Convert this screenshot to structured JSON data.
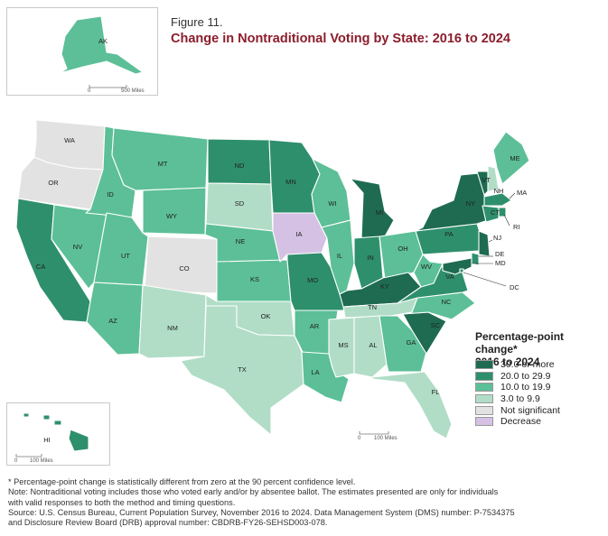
{
  "figure_label": "Figure 11.",
  "title": "Change in Nontraditional Voting by State: 2016 to 2024",
  "legend": {
    "title_line1": "Percentage-point change*",
    "title_line2": "2016 to 2024",
    "items": [
      {
        "label": "30.0 or more",
        "color": "#1e6b51"
      },
      {
        "label": "20.0 to 29.9",
        "color": "#2e8f6c"
      },
      {
        "label": "10.0 to 19.9",
        "color": "#5cbf97"
      },
      {
        "label": "3.0 to 9.9",
        "color": "#b1ddc7"
      },
      {
        "label": "Not significant",
        "color": "#e2e2e2"
      },
      {
        "label": "Decrease",
        "color": "#d4c1e3"
      }
    ]
  },
  "scales": {
    "ak": "500 Miles",
    "hi": "100 Miles",
    "main": "100 Miles",
    "zero": "0"
  },
  "states": {
    "AK": "10.0 to 19.9",
    "HI": "20.0 to 29.9",
    "WA": "Not significant",
    "OR": "Not significant",
    "CA": "20.0 to 29.9",
    "NV": "10.0 to 19.9",
    "ID": "10.0 to 19.9",
    "MT": "10.0 to 19.9",
    "WY": "10.0 to 19.9",
    "UT": "10.0 to 19.9",
    "AZ": "10.0 to 19.9",
    "CO": "Not significant",
    "NM": "3.0 to 9.9",
    "ND": "20.0 to 29.9",
    "SD": "3.0 to 9.9",
    "NE": "10.0 to 19.9",
    "KS": "10.0 to 19.9",
    "OK": "3.0 to 9.9",
    "TX": "3.0 to 9.9",
    "MN": "20.0 to 29.9",
    "IA": "Decrease",
    "MO": "20.0 to 29.9",
    "AR": "10.0 to 19.9",
    "LA": "10.0 to 19.9",
    "WI": "10.0 to 19.9",
    "IL": "10.0 to 19.9",
    "MI": "30.0 or more",
    "IN": "20.0 to 29.9",
    "OH": "10.0 to 19.9",
    "KY": "30.0 or more",
    "TN": "3.0 to 9.9",
    "MS": "3.0 to 9.9",
    "AL": "3.0 to 9.9",
    "GA": "10.0 to 19.9",
    "FL": "3.0 to 9.9",
    "SC": "30.0 or more",
    "NC": "10.0 to 19.9",
    "VA": "20.0 to 29.9",
    "WV": "10.0 to 19.9",
    "PA": "20.0 to 29.9",
    "NY": "30.0 or more",
    "VT": "30.0 or more",
    "NH": "3.0 to 9.9",
    "ME": "10.0 to 19.9",
    "MA": "20.0 to 29.9",
    "RI": "20.0 to 29.9",
    "CT": "20.0 to 29.9",
    "NJ": "30.0 or more",
    "DE": "20.0 to 29.9",
    "MD": "30.0 or more",
    "DC": "20.0 to 29.9"
  },
  "notes": [
    "* Percentage-point change is statistically different from zero at the 90 percent confidence level.",
    "Note: Nontraditional voting includes those who voted early and/or by absentee ballot. The estimates presented are only for individuals",
    "with valid responses to both the method and timing questions.",
    "Source: U.S. Census Bureau, Current Population Survey, November 2016 to 2024. Data Management System (DMS) number: P-7534375",
    "and Disclosure Review Board (DRB) approval number: CBDRB-FY26-SEHSD003-078."
  ]
}
